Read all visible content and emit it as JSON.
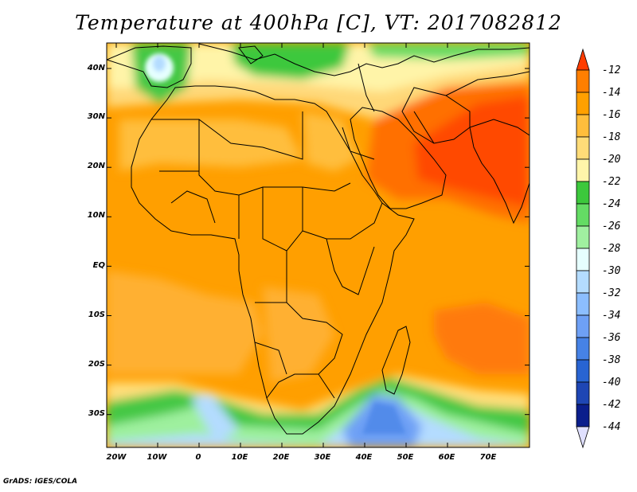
{
  "title": "Temperature at 400hPa [C], VT: 2017082812",
  "footer": "GrADS: IGES/COLA",
  "lat_labels": [
    "40N",
    "30N",
    "20N",
    "10N",
    "EQ",
    "10S",
    "20S",
    "30S"
  ],
  "lon_labels": [
    "20W",
    "10W",
    "0",
    "10E",
    "20E",
    "30E",
    "40E",
    "50E",
    "60E",
    "70E"
  ],
  "colorbar": {
    "labels": [
      "-12",
      "-14",
      "-16",
      "-18",
      "-20",
      "-22",
      "-24",
      "-26",
      "-28",
      "-30",
      "-32",
      "-34",
      "-36",
      "-38",
      "-40",
      "-42",
      "-44"
    ],
    "colors": [
      "#ff4500",
      "#ff7f00",
      "#ffa000",
      "#ffbe3c",
      "#ffdc78",
      "#fff5aa",
      "#3cc83c",
      "#64dc64",
      "#a0f0a0",
      "#e6ffff",
      "#b4dcff",
      "#8cbeff",
      "#6ea0f5",
      "#4682e6",
      "#2864d2",
      "#1e46b4",
      "#0a1e8c"
    ],
    "over_color": "#ff3c00",
    "under_color": "#e0e0ff"
  }
}
